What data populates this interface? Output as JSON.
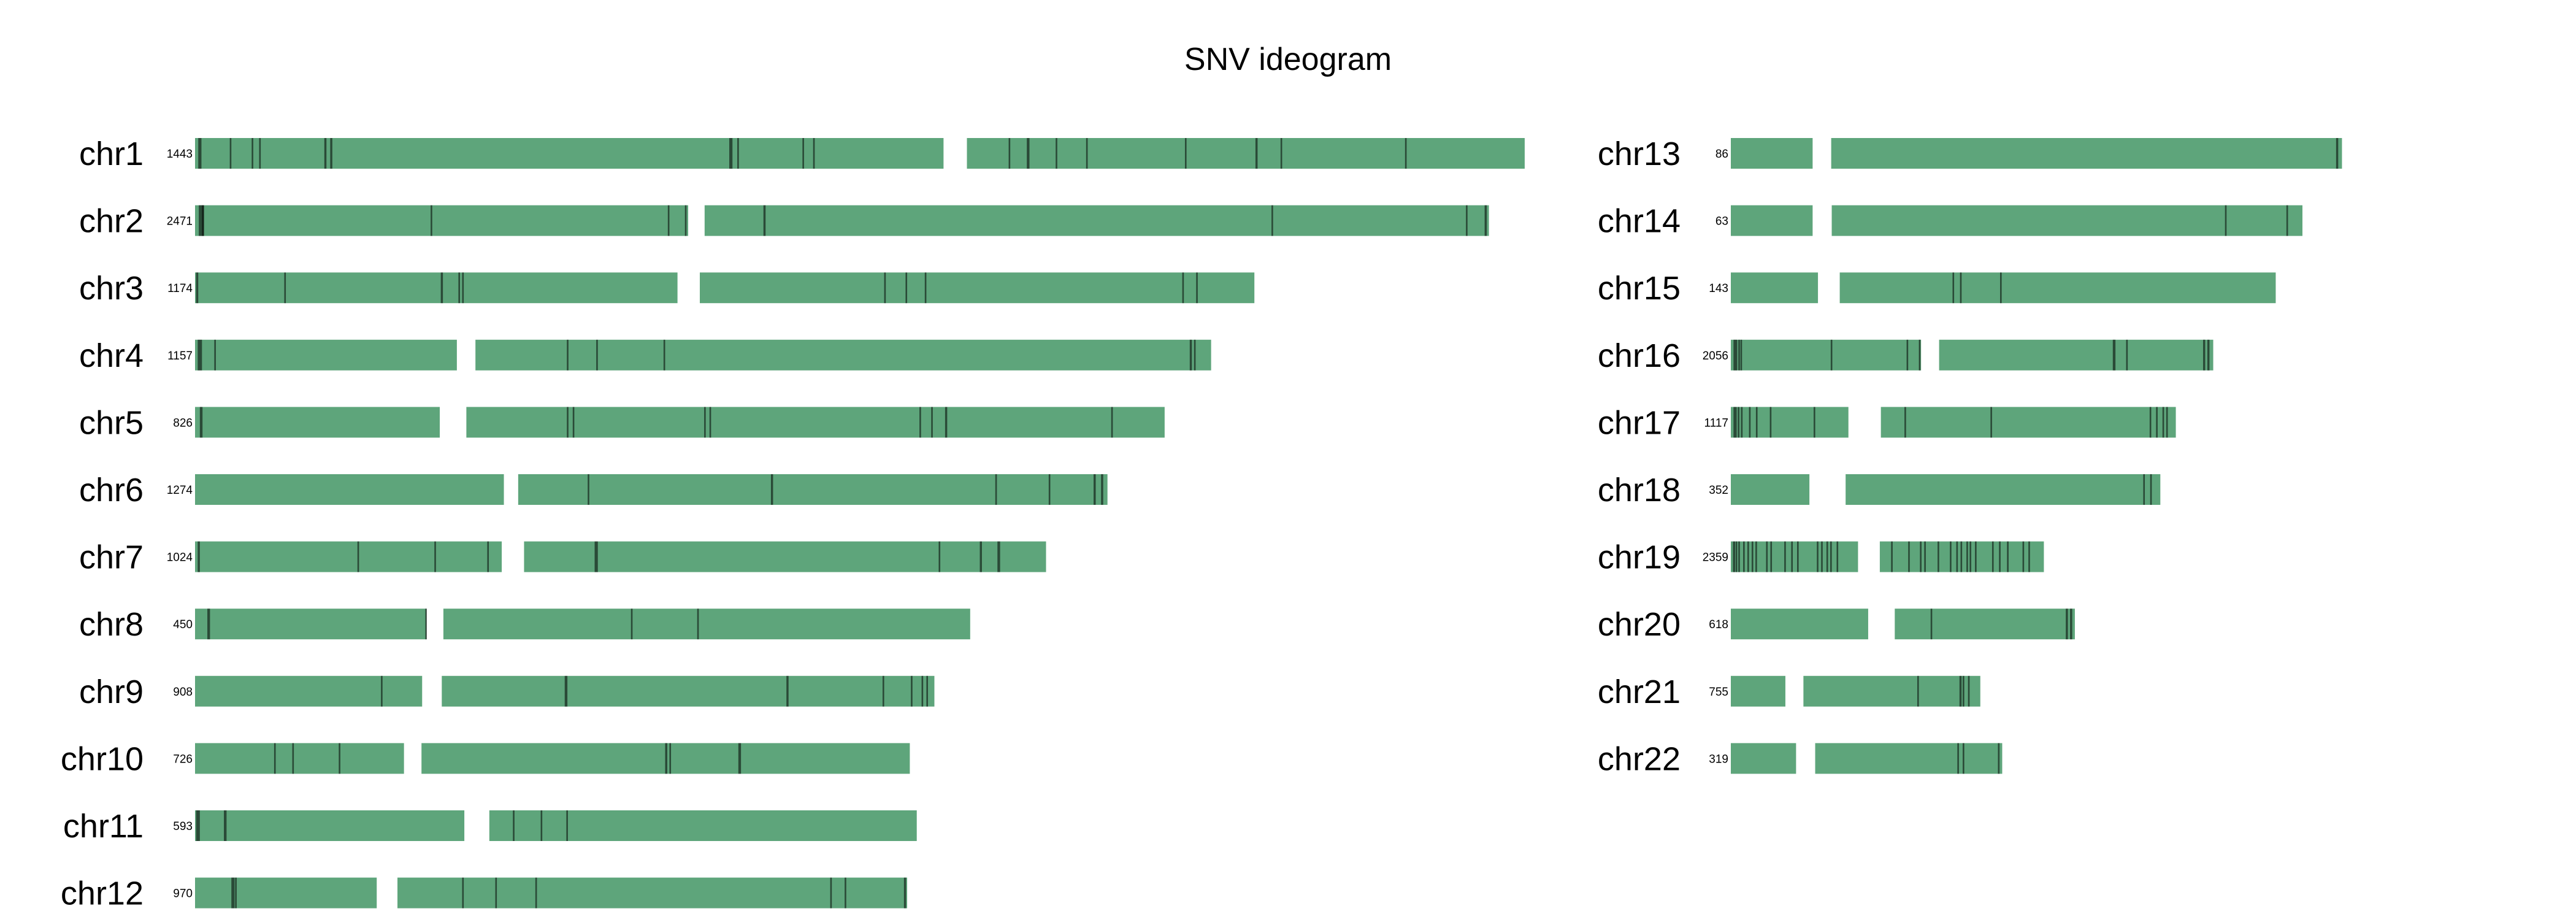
{
  "chart_data": {
    "type": "ideogram",
    "title": "SNV ideogram",
    "bar_color": "#5ea57b",
    "mark_color": "#000000",
    "chromosomes": [
      {
        "name": "chr1",
        "count": "1443",
        "length": 248.9,
        "centromere": [
          140.8,
          143.8
        ],
        "marks": [
          {
            "x": 0.6,
            "w": 0.6
          },
          {
            "x": 6.5,
            "w": 0.3
          },
          {
            "x": 10.6,
            "w": 0.3
          },
          {
            "x": 12.0,
            "w": 0.3
          },
          {
            "x": 24.2,
            "w": 0.4
          },
          {
            "x": 25.3,
            "w": 0.4
          },
          {
            "x": 100.0,
            "w": 0.6
          },
          {
            "x": 101.5,
            "w": 0.3
          },
          {
            "x": 113.7,
            "w": 0.3
          },
          {
            "x": 115.7,
            "w": 0.3
          },
          {
            "x": 152.3,
            "w": 0.3
          },
          {
            "x": 155.7,
            "w": 0.5
          },
          {
            "x": 161.1,
            "w": 0.3
          },
          {
            "x": 166.8,
            "w": 0.3
          },
          {
            "x": 185.3,
            "w": 0.3
          },
          {
            "x": 198.5,
            "w": 0.4
          },
          {
            "x": 203.2,
            "w": 0.3
          },
          {
            "x": 226.5,
            "w": 0.3
          }
        ]
      },
      {
        "name": "chr2",
        "count": "2471",
        "length": 242.2,
        "centromere": [
          93.0,
          94.7
        ],
        "marks": [
          {
            "x": 0.7,
            "w": 1.0
          },
          {
            "x": 1.3,
            "w": 0.3
          },
          {
            "x": 44.1,
            "w": 0.3
          },
          {
            "x": 88.5,
            "w": 0.3
          },
          {
            "x": 91.7,
            "w": 0.3
          },
          {
            "x": 106.4,
            "w": 0.4
          },
          {
            "x": 201.5,
            "w": 0.3
          },
          {
            "x": 237.9,
            "w": 0.3
          },
          {
            "x": 241.4,
            "w": 0.4
          }
        ]
      },
      {
        "name": "chr3",
        "count": "1174",
        "length": 198.3,
        "centromere": [
          91.0,
          93.8
        ],
        "marks": [
          {
            "x": 0.2,
            "w": 0.4
          },
          {
            "x": 16.7,
            "w": 0.3
          },
          {
            "x": 46.0,
            "w": 0.4
          },
          {
            "x": 49.3,
            "w": 0.3
          },
          {
            "x": 50.0,
            "w": 0.3
          },
          {
            "x": 129.0,
            "w": 0.3
          },
          {
            "x": 133.0,
            "w": 0.3
          },
          {
            "x": 136.6,
            "w": 0.3
          },
          {
            "x": 184.8,
            "w": 0.3
          },
          {
            "x": 187.4,
            "w": 0.3
          }
        ]
      },
      {
        "name": "chr4",
        "count": "1157",
        "length": 190.2,
        "centromere": [
          49.7,
          51.8
        ],
        "marks": [
          {
            "x": 0.5,
            "w": 0.8
          },
          {
            "x": 3.6,
            "w": 0.3
          },
          {
            "x": 69.6,
            "w": 0.3
          },
          {
            "x": 75.1,
            "w": 0.3
          },
          {
            "x": 87.7,
            "w": 0.3
          },
          {
            "x": 186.2,
            "w": 0.4
          },
          {
            "x": 187.0,
            "w": 0.3
          }
        ]
      },
      {
        "name": "chr5",
        "count": "826",
        "length": 181.5,
        "centromere": [
          46.5,
          50.1
        ],
        "marks": [
          {
            "x": 0.9,
            "w": 0.5
          },
          {
            "x": 69.6,
            "w": 0.3
          },
          {
            "x": 70.7,
            "w": 0.3
          },
          {
            "x": 95.3,
            "w": 0.3
          },
          {
            "x": 96.3,
            "w": 0.3
          },
          {
            "x": 135.6,
            "w": 0.3
          },
          {
            "x": 137.8,
            "w": 0.3
          },
          {
            "x": 140.4,
            "w": 0.4
          },
          {
            "x": 171.5,
            "w": 0.3
          }
        ]
      },
      {
        "name": "chr6",
        "count": "1274",
        "length": 170.8,
        "centromere": [
          58.5,
          59.8
        ],
        "marks": [
          {
            "x": 73.5,
            "w": 0.3
          },
          {
            "x": 107.8,
            "w": 0.4
          },
          {
            "x": 149.8,
            "w": 0.3
          },
          {
            "x": 159.8,
            "w": 0.3
          },
          {
            "x": 168.2,
            "w": 0.4
          },
          {
            "x": 169.6,
            "w": 0.4
          }
        ]
      },
      {
        "name": "chr7",
        "count": "1024",
        "length": 159.3,
        "centromere": [
          58.1,
          60.9
        ],
        "marks": [
          {
            "x": 0.5,
            "w": 0.4
          },
          {
            "x": 30.4,
            "w": 0.3
          },
          {
            "x": 44.8,
            "w": 0.3
          },
          {
            "x": 54.7,
            "w": 0.3
          },
          {
            "x": 74.8,
            "w": 0.6
          },
          {
            "x": 139.2,
            "w": 0.3
          },
          {
            "x": 146.9,
            "w": 0.4
          },
          {
            "x": 150.2,
            "w": 0.5
          }
        ]
      },
      {
        "name": "chr8",
        "count": "450",
        "length": 145.1,
        "centromere": [
          44.0,
          45.8
        ],
        "marks": [
          {
            "x": 2.3,
            "w": 0.5
          },
          {
            "x": 43.1,
            "w": 0.3
          },
          {
            "x": 81.6,
            "w": 0.3
          },
          {
            "x": 94.0,
            "w": 0.3
          }
        ]
      },
      {
        "name": "chr9",
        "count": "908",
        "length": 138.4,
        "centromere": [
          43.2,
          45.5
        ],
        "marks": [
          {
            "x": 34.8,
            "w": 0.3
          },
          {
            "x": 69.2,
            "w": 0.5
          },
          {
            "x": 110.7,
            "w": 0.4
          },
          {
            "x": 128.7,
            "w": 0.3
          },
          {
            "x": 134.0,
            "w": 0.3
          },
          {
            "x": 136.0,
            "w": 0.3
          },
          {
            "x": 136.9,
            "w": 0.3
          }
        ]
      },
      {
        "name": "chr10",
        "count": "726",
        "length": 133.8,
        "centromere": [
          39.8,
          41.7
        ],
        "marks": [
          {
            "x": 14.8,
            "w": 0.3
          },
          {
            "x": 18.2,
            "w": 0.3
          },
          {
            "x": 26.9,
            "w": 0.3
          },
          {
            "x": 88.0,
            "w": 0.4
          },
          {
            "x": 88.8,
            "w": 0.3
          },
          {
            "x": 101.7,
            "w": 0.5
          }
        ]
      },
      {
        "name": "chr11",
        "count": "593",
        "length": 135.1,
        "centromere": [
          51.1,
          54.4
        ],
        "marks": [
          {
            "x": 0.2,
            "w": 0.7
          },
          {
            "x": 5.4,
            "w": 0.5
          },
          {
            "x": 59.5,
            "w": 0.3
          },
          {
            "x": 64.7,
            "w": 0.3
          },
          {
            "x": 69.5,
            "w": 0.3
          }
        ]
      },
      {
        "name": "chr12",
        "count": "970",
        "length": 133.3,
        "centromere": [
          34.7,
          37.2
        ],
        "marks": [
          {
            "x": 6.8,
            "w": 0.6
          },
          {
            "x": 7.5,
            "w": 0.3
          },
          {
            "x": 50.0,
            "w": 0.3
          },
          {
            "x": 56.2,
            "w": 0.3
          },
          {
            "x": 63.7,
            "w": 0.3
          },
          {
            "x": 118.9,
            "w": 0.3
          },
          {
            "x": 121.6,
            "w": 0.3
          },
          {
            "x": 132.7,
            "w": 0.4
          }
        ]
      },
      {
        "name": "chr13",
        "count": "86",
        "length": 114.4,
        "centromere": [
          16.0,
          18.1
        ],
        "marks": [
          {
            "x": 113.3,
            "w": 0.4
          }
        ]
      },
      {
        "name": "chr14",
        "count": "63",
        "length": 107.0,
        "centromere": [
          16.0,
          18.2
        ],
        "marks": [
          {
            "x": 92.5,
            "w": 0.3
          },
          {
            "x": 104.0,
            "w": 0.3
          }
        ]
      },
      {
        "name": "chr15",
        "count": "143",
        "length": 102.0,
        "centromere": [
          17.0,
          19.7
        ],
        "marks": [
          {
            "x": 41.5,
            "w": 0.3
          },
          {
            "x": 42.9,
            "w": 0.3
          },
          {
            "x": 50.4,
            "w": 0.3
          }
        ]
      },
      {
        "name": "chr16",
        "count": "2056",
        "length": 90.3,
        "centromere": [
          36.3,
          38.3
        ],
        "marks": [
          {
            "x": 0.5,
            "w": 0.7
          },
          {
            "x": 1.4,
            "w": 0.3
          },
          {
            "x": 1.8,
            "w": 0.3
          },
          {
            "x": 18.7,
            "w": 0.3
          },
          {
            "x": 32.9,
            "w": 0.3
          },
          {
            "x": 35.2,
            "w": 0.3
          },
          {
            "x": 71.5,
            "w": 0.5
          },
          {
            "x": 74.0,
            "w": 0.3
          },
          {
            "x": 88.4,
            "w": 0.4
          },
          {
            "x": 89.2,
            "w": 0.4
          }
        ]
      },
      {
        "name": "chr17",
        "count": "1117",
        "length": 83.3,
        "centromere": [
          22.7,
          27.4
        ],
        "marks": [
          {
            "x": 0.5,
            "w": 0.6
          },
          {
            "x": 1.3,
            "w": 0.3
          },
          {
            "x": 1.9,
            "w": 0.3
          },
          {
            "x": 3.4,
            "w": 0.3
          },
          {
            "x": 4.7,
            "w": 0.3
          },
          {
            "x": 7.3,
            "w": 0.3
          },
          {
            "x": 15.5,
            "w": 0.3
          },
          {
            "x": 32.5,
            "w": 0.3
          },
          {
            "x": 48.6,
            "w": 0.3
          },
          {
            "x": 78.4,
            "w": 0.3
          },
          {
            "x": 79.6,
            "w": 0.3
          },
          {
            "x": 80.8,
            "w": 0.3
          },
          {
            "x": 81.5,
            "w": 0.3
          }
        ]
      },
      {
        "name": "chr18",
        "count": "352",
        "length": 80.4,
        "centromere": [
          15.4,
          20.8
        ],
        "marks": [
          {
            "x": 77.2,
            "w": 0.3
          },
          {
            "x": 78.5,
            "w": 0.3
          }
        ]
      },
      {
        "name": "chr19",
        "count": "2359",
        "length": 58.6,
        "centromere": [
          24.5,
          27.2
        ],
        "marks": [
          {
            "x": 0.4,
            "w": 0.4
          },
          {
            "x": 0.9,
            "w": 0.3
          },
          {
            "x": 1.4,
            "w": 0.3
          },
          {
            "x": 2.3,
            "w": 0.3
          },
          {
            "x": 3.1,
            "w": 0.3
          },
          {
            "x": 3.9,
            "w": 0.3
          },
          {
            "x": 4.6,
            "w": 0.3
          },
          {
            "x": 6.6,
            "w": 0.3
          },
          {
            "x": 7.4,
            "w": 0.3
          },
          {
            "x": 10.0,
            "w": 0.3
          },
          {
            "x": 11.3,
            "w": 0.3
          },
          {
            "x": 12.4,
            "w": 0.3
          },
          {
            "x": 16.1,
            "w": 0.3
          },
          {
            "x": 16.9,
            "w": 0.3
          },
          {
            "x": 17.9,
            "w": 0.3
          },
          {
            "x": 18.6,
            "w": 0.3
          },
          {
            "x": 19.8,
            "w": 0.3
          },
          {
            "x": 30.0,
            "w": 0.3
          },
          {
            "x": 33.2,
            "w": 0.3
          },
          {
            "x": 35.4,
            "w": 0.3
          },
          {
            "x": 36.2,
            "w": 0.3
          },
          {
            "x": 38.7,
            "w": 0.3
          },
          {
            "x": 41.0,
            "w": 0.3
          },
          {
            "x": 42.2,
            "w": 0.3
          },
          {
            "x": 43.0,
            "w": 0.3
          },
          {
            "x": 44.1,
            "w": 0.3
          },
          {
            "x": 44.7,
            "w": 0.3
          },
          {
            "x": 45.7,
            "w": 0.3
          },
          {
            "x": 48.9,
            "w": 0.3
          },
          {
            "x": 50.2,
            "w": 0.3
          },
          {
            "x": 51.7,
            "w": 0.3
          },
          {
            "x": 54.6,
            "w": 0.3
          },
          {
            "x": 55.7,
            "w": 0.3
          }
        ]
      },
      {
        "name": "chr20",
        "count": "618",
        "length": 64.4,
        "centromere": [
          26.4,
          30.0
        ],
        "marks": [
          {
            "x": 37.4,
            "w": 0.3
          },
          {
            "x": 62.7,
            "w": 0.4
          },
          {
            "x": 63.5,
            "w": 0.4
          }
        ]
      },
      {
        "name": "chr21",
        "count": "755",
        "length": 46.7,
        "centromere": [
          10.9,
          12.9
        ],
        "marks": [
          {
            "x": 34.9,
            "w": 0.3
          },
          {
            "x": 42.8,
            "w": 0.4
          },
          {
            "x": 43.4,
            "w": 0.3
          },
          {
            "x": 44.4,
            "w": 0.3
          }
        ]
      },
      {
        "name": "chr22",
        "count": "319",
        "length": 50.8,
        "centromere": [
          12.9,
          15.1
        ],
        "marks": [
          {
            "x": 42.4,
            "w": 0.3
          },
          {
            "x": 43.4,
            "w": 0.3
          },
          {
            "x": 50.0,
            "w": 0.3
          }
        ]
      }
    ]
  }
}
